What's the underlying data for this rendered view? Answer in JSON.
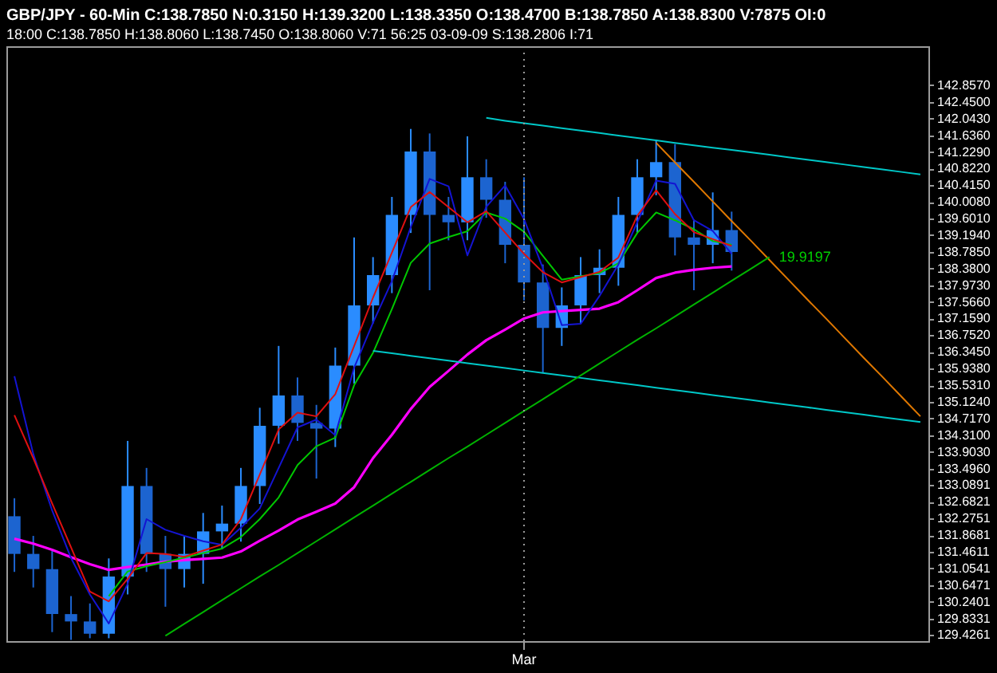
{
  "chart_data": {
    "type": "candlestick",
    "title": "GBP/JPY - 60-Min C:138.7850 N:0.3150 H:139.3200 L:138.3350 O:138.4700 B:138.7850 A:138.8300 V:7875 OI:0",
    "subtitle": "18:00   C:138.7850   H:138.8060   L:138.7450   O:138.8060   V:71   56:25   03-09-09   S:138.2806   I:71",
    "colors": [
      "#1c64d0",
      "#1c64d0",
      "#1c64d0",
      "#1c64d0",
      "#1c64d0",
      "#2a8cff",
      "#2a8cff",
      "#1c64d0",
      "#1c64d0",
      "#2a8cff",
      "#2a8cff",
      "#2a8cff",
      "#2a8cff",
      "#2a8cff",
      "#2a8cff",
      "#1c64d0",
      "#1c64d0",
      "#2a8cff",
      "#2a8cff",
      "#2a8cff",
      "#2a8cff",
      "#2a8cff",
      "#1c64d0",
      "#1c64d0",
      "#2a8cff",
      "#1c64d0",
      "#1c64d0",
      "#1c64d0",
      "#1c64d0",
      "#2a8cff",
      "#2a8cff",
      "#2a8cff",
      "#2a8cff",
      "#2a8cff",
      "#2a8cff",
      "#1c64d0",
      "#1c64d0",
      "#2a8cff",
      "#1c64d0",
      null,
      null,
      null,
      null,
      null,
      null,
      null,
      null,
      null,
      null
    ],
    "categories": [
      null,
      null,
      null,
      null,
      null,
      null,
      null,
      null,
      null,
      null,
      null,
      null,
      null,
      null,
      null,
      null,
      null,
      null,
      null,
      null,
      null,
      null,
      null,
      null,
      null,
      null,
      null,
      "Mar",
      null,
      null,
      null,
      null,
      null,
      null,
      null,
      null,
      null,
      null,
      null,
      null,
      null,
      null,
      null,
      null,
      null,
      null,
      null,
      null,
      null
    ],
    "ohlc": [
      [
        132.33,
        132.77,
        130.97,
        131.41
      ],
      [
        131.41,
        131.85,
        130.59,
        131.04
      ],
      [
        131.04,
        131.48,
        129.5,
        129.94
      ],
      [
        129.94,
        130.38,
        129.31,
        129.76
      ],
      [
        129.76,
        130.2,
        129.35,
        129.46
      ],
      [
        129.46,
        131.3,
        129.35,
        130.86
      ],
      [
        130.86,
        134.17,
        130.42,
        133.07
      ],
      [
        133.07,
        133.51,
        130.97,
        131.41
      ],
      [
        131.41,
        131.85,
        130.12,
        131.04
      ],
      [
        131.04,
        131.85,
        130.59,
        131.41
      ],
      [
        131.41,
        132.41,
        130.68,
        131.96
      ],
      [
        131.96,
        132.59,
        131.52,
        132.15
      ],
      [
        132.15,
        133.51,
        131.71,
        133.07
      ],
      [
        133.07,
        134.98,
        132.63,
        134.54
      ],
      [
        134.54,
        136.49,
        134.1,
        135.28
      ],
      [
        135.28,
        135.72,
        134.17,
        134.61
      ],
      [
        134.61,
        135.05,
        133.25,
        134.47
      ],
      [
        134.47,
        136.45,
        134.02,
        136.01
      ],
      [
        136.01,
        139.14,
        135.57,
        137.48
      ],
      [
        137.48,
        138.66,
        137.04,
        138.22
      ],
      [
        138.22,
        140.13,
        137.78,
        139.69
      ],
      [
        139.69,
        141.79,
        139.25,
        141.24
      ],
      [
        141.24,
        141.68,
        137.85,
        139.69
      ],
      [
        139.69,
        140.13,
        139.07,
        139.51
      ],
      [
        139.51,
        141.61,
        139.07,
        140.61
      ],
      [
        140.61,
        141.05,
        139.62,
        140.06
      ],
      [
        140.06,
        140.5,
        138.51,
        138.96
      ],
      [
        138.96,
        140.61,
        137.6,
        138.04
      ],
      [
        138.04,
        138.48,
        135.83,
        136.93
      ],
      [
        136.93,
        137.92,
        136.49,
        137.48
      ],
      [
        137.48,
        138.66,
        137.04,
        138.22
      ],
      [
        138.22,
        138.85,
        137.78,
        138.4
      ],
      [
        138.4,
        140.13,
        137.96,
        139.69
      ],
      [
        139.69,
        141.05,
        139.25,
        140.61
      ],
      [
        140.61,
        141.53,
        140.17,
        140.98
      ],
      [
        140.98,
        141.42,
        138.7,
        139.14
      ],
      [
        139.14,
        139.58,
        137.85,
        138.96
      ],
      [
        138.96,
        140.24,
        138.51,
        139.32
      ],
      [
        139.32,
        139.77,
        138.33,
        138.785
      ],
      null,
      null,
      null,
      null,
      null,
      null,
      null,
      null,
      null,
      null
    ],
    "series": [
      {
        "type": "line",
        "color": "#ff00ff",
        "values": [
          131.78,
          131.66,
          131.51,
          131.33,
          131.16,
          131.02,
          131.09,
          131.15,
          131.22,
          131.26,
          131.29,
          131.32,
          131.47,
          131.73,
          131.98,
          132.25,
          132.44,
          132.64,
          133.04,
          133.75,
          134.32,
          134.95,
          135.49,
          135.88,
          136.28,
          136.63,
          136.89,
          137.16,
          137.31,
          137.34,
          137.37,
          137.4,
          137.56,
          137.85,
          138.15,
          138.28,
          138.35,
          138.4,
          138.43,
          null,
          null,
          null,
          null,
          null,
          null,
          null,
          null,
          null,
          null
        ]
      },
      {
        "type": "line",
        "color": "#00c800",
        "values": [
          null,
          null,
          null,
          null,
          null,
          130.38,
          130.98,
          131.11,
          131.21,
          131.32,
          131.43,
          131.54,
          131.82,
          132.26,
          132.79,
          133.58,
          134.04,
          134.25,
          135.53,
          136.32,
          137.39,
          138.52,
          138.99,
          139.15,
          139.29,
          139.75,
          139.6,
          139.28,
          138.69,
          138.11,
          138.19,
          138.27,
          138.51,
          139.25,
          139.75,
          139.56,
          139.34,
          139.05,
          138.96,
          null,
          null,
          null,
          null,
          null,
          null,
          null,
          null,
          null,
          null
        ]
      },
      {
        "type": "line",
        "color": "#1414d2",
        "values": [
          135.75,
          133.85,
          132.47,
          131.31,
          130.42,
          129.71,
          130.68,
          132.26,
          132.0,
          131.85,
          131.72,
          131.63,
          132.05,
          132.52,
          133.51,
          134.5,
          134.69,
          134.31,
          135.96,
          137.06,
          138.07,
          139.39,
          140.57,
          140.39,
          138.7,
          139.89,
          140.41,
          139.59,
          138.39,
          137.0,
          137.03,
          137.71,
          138.48,
          139.51,
          140.53,
          140.45,
          139.56,
          139.3,
          138.74,
          null,
          null,
          null,
          null,
          null,
          null,
          null,
          null,
          null,
          null
        ]
      },
      {
        "type": "line",
        "color": "#e01010",
        "values": [
          134.8,
          133.75,
          132.64,
          131.57,
          130.49,
          130.25,
          130.8,
          131.43,
          131.41,
          131.34,
          131.49,
          131.64,
          132.26,
          133.35,
          134.45,
          134.86,
          134.77,
          135.31,
          136.49,
          137.67,
          138.77,
          139.88,
          140.25,
          139.88,
          139.51,
          139.78,
          139.26,
          138.74,
          138.29,
          138.04,
          138.17,
          138.3,
          138.65,
          139.67,
          140.29,
          139.71,
          139.27,
          139.1,
          138.93,
          null,
          null,
          null,
          null,
          null,
          null,
          null,
          null,
          null,
          null
        ]
      },
      {
        "type": "line",
        "color": "#00c8c8",
        "values": [
          null,
          null,
          null,
          null,
          null,
          null,
          null,
          null,
          null,
          null,
          null,
          null,
          null,
          null,
          null,
          null,
          null,
          null,
          null,
          null,
          null,
          null,
          null,
          null,
          null,
          142.06,
          141.99,
          141.93,
          141.87,
          141.81,
          141.75,
          141.69,
          141.63,
          141.57,
          141.51,
          141.45,
          141.39,
          141.33,
          141.28,
          141.22,
          141.16,
          141.1,
          141.04,
          140.98,
          140.92,
          140.86,
          140.8,
          140.74,
          140.68
        ]
      },
      {
        "type": "line",
        "color": "#00c8c8",
        "values": [
          null,
          null,
          null,
          null,
          null,
          null,
          null,
          null,
          null,
          null,
          null,
          null,
          null,
          null,
          null,
          null,
          null,
          null,
          null,
          136.37,
          136.31,
          136.25,
          136.19,
          136.13,
          136.07,
          136.01,
          135.95,
          135.89,
          135.83,
          135.77,
          135.71,
          135.65,
          135.59,
          135.53,
          135.47,
          135.41,
          135.35,
          135.29,
          135.23,
          135.17,
          135.11,
          135.05,
          134.99,
          134.93,
          134.87,
          134.81,
          134.75,
          134.69,
          134.63
        ]
      },
      {
        "type": "line",
        "color": "#e07800",
        "values": [
          null,
          null,
          null,
          null,
          null,
          null,
          null,
          null,
          null,
          null,
          null,
          null,
          null,
          null,
          null,
          null,
          null,
          null,
          null,
          null,
          null,
          null,
          null,
          null,
          null,
          null,
          null,
          null,
          null,
          null,
          null,
          null,
          null,
          null,
          141.45,
          140.97,
          140.5,
          140.02,
          139.54,
          139.07,
          138.59,
          138.11,
          137.63,
          137.16,
          136.68,
          136.2,
          135.73,
          135.25,
          134.77
        ]
      },
      {
        "type": "line",
        "color": "#00b400",
        "values": [
          null,
          null,
          null,
          null,
          null,
          null,
          null,
          null,
          129.41,
          129.7,
          129.99,
          130.28,
          130.57,
          130.86,
          131.14,
          131.43,
          131.72,
          132.01,
          132.3,
          132.59,
          132.88,
          133.17,
          133.46,
          133.75,
          134.03,
          134.32,
          134.61,
          134.9,
          135.19,
          135.48,
          135.77,
          136.06,
          136.35,
          136.64,
          136.92,
          137.21,
          137.5,
          137.79,
          138.08,
          138.37,
          138.66,
          null,
          null,
          null,
          null,
          null,
          null,
          null,
          null
        ]
      }
    ],
    "annotations": [
      "19.9197"
    ],
    "ref_lines": [
      {
        "axis": "x",
        "value": "Mar",
        "line_style": "dotted",
        "color": "#9a9a9a"
      }
    ],
    "ylim": [
      129.28,
      143.81
    ],
    "yticks": [
      {
        "value": 142.857,
        "label": "142.8570"
      },
      {
        "value": 142.45,
        "label": "142.4500"
      },
      {
        "value": 142.043,
        "label": "142.0430"
      },
      {
        "value": 141.636,
        "label": "141.6360"
      },
      {
        "value": 141.229,
        "label": "141.2290"
      },
      {
        "value": 140.822,
        "label": "140.8220"
      },
      {
        "value": 140.415,
        "label": "140.4150"
      },
      {
        "value": 140.008,
        "label": "140.0080"
      },
      {
        "value": 139.601,
        "label": "139.6010"
      },
      {
        "value": 139.194,
        "label": "139.1940"
      },
      {
        "value": 138.785,
        "label": "138.7850"
      },
      {
        "value": 138.38,
        "label": "138.3800"
      },
      {
        "value": 137.973,
        "label": "137.9730"
      },
      {
        "value": 137.566,
        "label": "137.5660"
      },
      {
        "value": 137.159,
        "label": "137.1590"
      },
      {
        "value": 136.752,
        "label": "136.7520"
      },
      {
        "value": 136.345,
        "label": "136.3450"
      },
      {
        "value": 135.938,
        "label": "135.9380"
      },
      {
        "value": 135.531,
        "label": "135.5310"
      },
      {
        "value": 135.124,
        "label": "135.1240"
      },
      {
        "value": 134.717,
        "label": "134.7170"
      },
      {
        "value": 134.31,
        "label": "134.3100"
      },
      {
        "value": 133.903,
        "label": "133.9030"
      },
      {
        "value": 133.496,
        "label": "133.4960"
      },
      {
        "value": 133.0891,
        "label": "133.0891"
      },
      {
        "value": 132.6821,
        "label": "132.6821"
      },
      {
        "value": 132.2751,
        "label": "132.2751"
      },
      {
        "value": 131.8681,
        "label": "131.8681"
      },
      {
        "value": 131.4611,
        "label": "131.4611"
      },
      {
        "value": 131.0541,
        "label": "131.0541"
      },
      {
        "value": 130.6471,
        "label": "130.6471"
      },
      {
        "value": 130.2401,
        "label": "130.2401"
      },
      {
        "value": 129.8331,
        "label": "129.8331"
      },
      {
        "value": 129.4261,
        "label": "129.4261"
      }
    ]
  }
}
